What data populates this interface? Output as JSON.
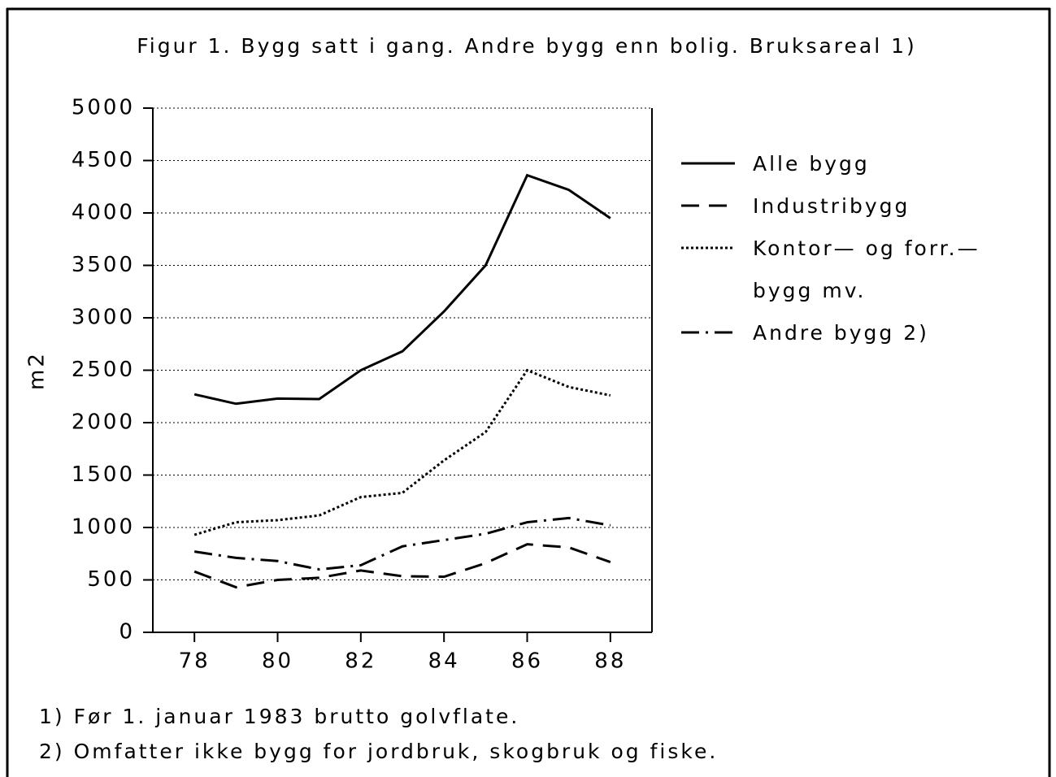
{
  "chart_data": {
    "type": "line",
    "title": "Figur 1. Bygg satt i gang. Andre bygg enn bolig. Bruksareal 1)",
    "y_label": "m2",
    "x": [
      78,
      79,
      80,
      81,
      82,
      83,
      84,
      85,
      86,
      87,
      88
    ],
    "xlim": [
      77,
      89
    ],
    "xticks": [
      78,
      80,
      82,
      84,
      86,
      88
    ],
    "ylim": [
      0,
      5000
    ],
    "yticks": [
      0,
      500,
      1000,
      1500,
      2000,
      2500,
      3000,
      3500,
      4000,
      4500,
      5000
    ],
    "grid": true,
    "legend": "right",
    "series": [
      {
        "name": "Alle bygg",
        "color": "#000000",
        "dash": "solid",
        "values": [
          2270,
          2180,
          2230,
          2225,
          2500,
          2680,
          3060,
          3500,
          4360,
          4220,
          3950
        ]
      },
      {
        "name": "Industribygg",
        "color": "#000000",
        "dash": "dashed",
        "values": [
          580,
          430,
          500,
          520,
          590,
          535,
          530,
          660,
          840,
          810,
          670
        ]
      },
      {
        "name": "Kontor— og forr.— bygg mv.",
        "color": "#000000",
        "dash": "dotted",
        "values": [
          930,
          1050,
          1070,
          1115,
          1290,
          1330,
          1640,
          1910,
          2500,
          2340,
          2260
        ]
      },
      {
        "name": "Andre bygg 2)",
        "color": "#000000",
        "dash": "dashdot",
        "values": [
          770,
          710,
          680,
          600,
          640,
          820,
          880,
          940,
          1050,
          1090,
          1020
        ]
      }
    ],
    "footnotes": [
      "1) Før 1. januar 1983 brutto golvflate.",
      "2) Omfatter ikke bygg for jordbruk, skogbruk og fiske."
    ]
  }
}
